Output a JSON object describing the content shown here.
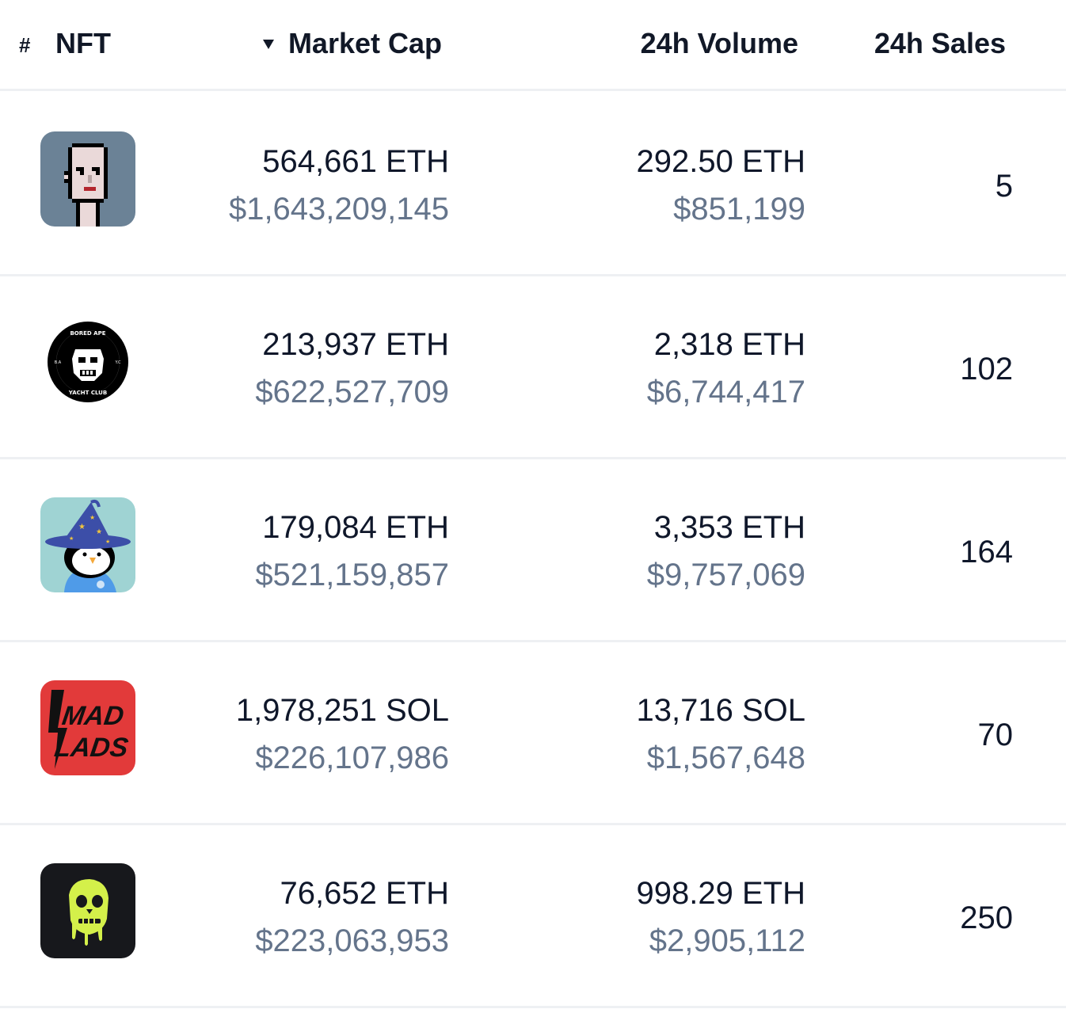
{
  "header": {
    "rank_symbol": "#",
    "nft_label": "NFT",
    "market_cap_label": "Market Cap",
    "volume_label": "24h Volume",
    "sales_label": "24h Sales"
  },
  "rows": [
    {
      "avatar_icon": "cryptopunk-avatar-icon",
      "market_cap_native": "564,661 ETH",
      "market_cap_usd": "$1,643,209,145",
      "volume_native": "292.50 ETH",
      "volume_usd": "$851,199",
      "sales": "5"
    },
    {
      "avatar_icon": "bored-ape-yacht-club-logo-icon",
      "avatar_text_top": "BORED APE",
      "avatar_text_bottom": "YACHT CLUB",
      "avatar_text_left": "B.A",
      "avatar_text_right": "Y.C",
      "market_cap_native": "213,937 ETH",
      "market_cap_usd": "$622,527,709",
      "volume_native": "2,318 ETH",
      "volume_usd": "$6,744,417",
      "sales": "102"
    },
    {
      "avatar_icon": "pudgy-penguin-wizard-icon",
      "market_cap_native": "179,084 ETH",
      "market_cap_usd": "$521,159,857",
      "volume_native": "3,353 ETH",
      "volume_usd": "$9,757,069",
      "sales": "164"
    },
    {
      "avatar_icon": "mad-lads-logo-icon",
      "avatar_text_line1": "MAD",
      "avatar_text_line2": "LADS",
      "market_cap_native": "1,978,251 SOL",
      "market_cap_usd": "$226,107,986",
      "volume_native": "13,716 SOL",
      "volume_usd": "$1,567,648",
      "sales": "70"
    },
    {
      "avatar_icon": "mutant-ape-skull-icon",
      "market_cap_native": "76,652 ETH",
      "market_cap_usd": "$223,063,953",
      "volume_native": "998.29 ETH",
      "volume_usd": "$2,905,112",
      "sales": "250"
    }
  ],
  "colors": {
    "primary_text": "#0f172a",
    "secondary_text": "#64748b",
    "divider": "#eef0f3",
    "punk_bg": "#6b8296",
    "penguin_bg": "#9fd3d3",
    "madlads_bg": "#e23a3a",
    "mutant_bg": "#17181c",
    "mutant_accent": "#d4f04a"
  }
}
